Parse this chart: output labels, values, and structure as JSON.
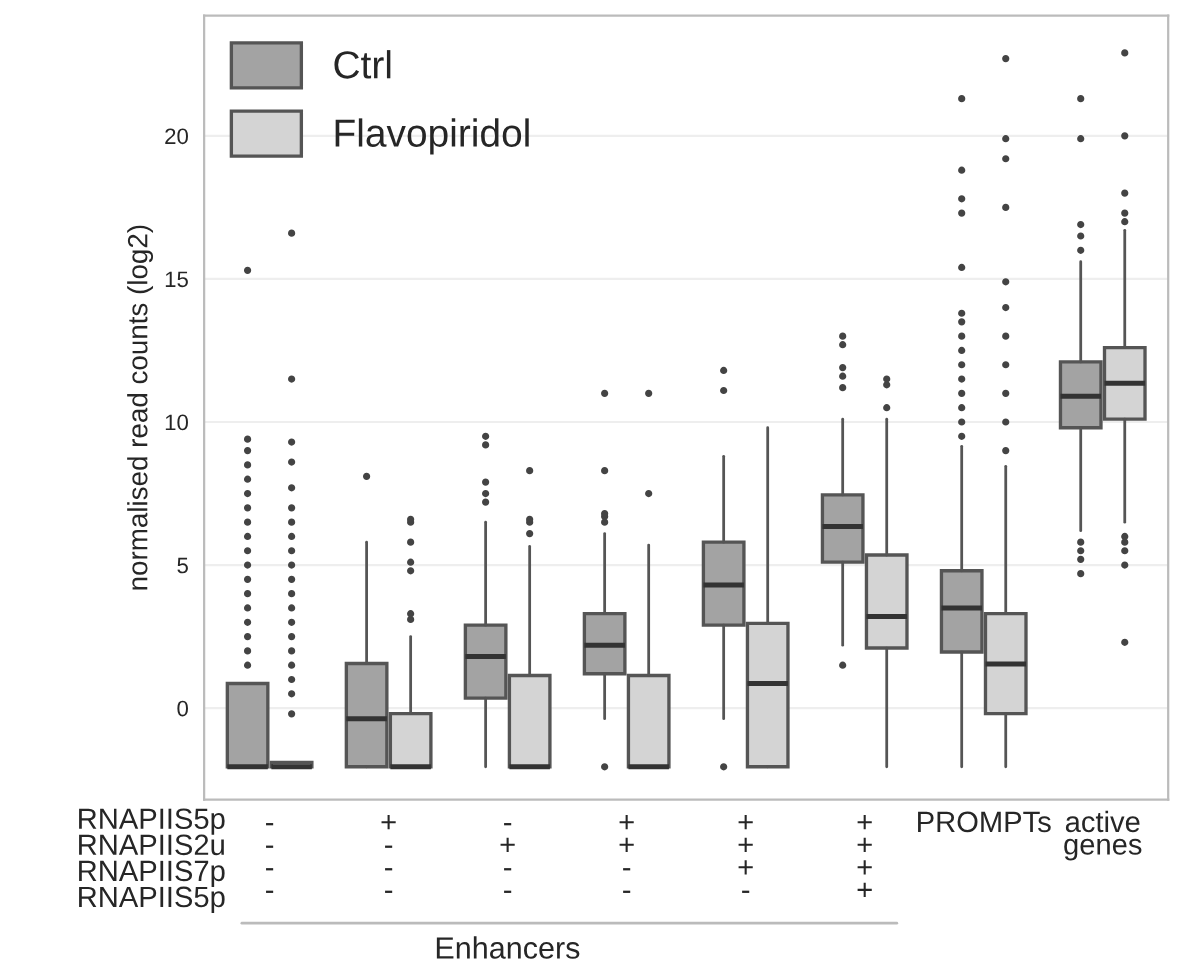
{
  "chart_data": {
    "type": "box",
    "ylabel": "normalised read counts (log2)",
    "categories": [
      "-\n-\n-\n-",
      "+\n-\n-\n-",
      "-\n+\n-\n-",
      "+\n+\n-\n-",
      "+\n+\n+\n-",
      "+\n+\n+\n+",
      "PROMPTs",
      "active\ngenes"
    ],
    "annotations": [
      "RNAPIIS5p",
      "RNAPIIS2u",
      "RNAPIIS7p",
      "RNAPIIS5p",
      "Enhancers"
    ],
    "ylim": [
      -3.2,
      24.2
    ],
    "yticks": [
      0,
      5,
      10,
      15,
      20
    ],
    "grid": "y",
    "legend": "top left",
    "series": [
      {
        "name": "Ctrl",
        "color": "#a3a3a3",
        "boxes": [
          {
            "low": -2.05,
            "q1": -2.05,
            "median": -2.05,
            "q3": 0.86,
            "high": 0.86,
            "outliers": [
              1.5,
              2,
              2.5,
              3,
              3.5,
              4,
              4.5,
              5,
              5.5,
              6,
              6.5,
              7,
              7.5,
              8,
              8.5,
              9,
              9.4,
              15.3
            ]
          },
          {
            "low": -2.05,
            "q1": -2.05,
            "median": -0.37,
            "q3": 1.56,
            "high": 5.8,
            "outliers": [
              8.1
            ]
          },
          {
            "low": -2.05,
            "q1": 0.35,
            "median": 1.8,
            "q3": 2.9,
            "high": 6.5,
            "outliers": [
              7.2,
              7.5,
              7.9,
              9.2,
              9.5
            ]
          },
          {
            "low": -0.37,
            "q1": 1.2,
            "median": 2.2,
            "q3": 3.3,
            "high": 6.1,
            "outliers": [
              -2.05,
              6.5,
              6.7,
              6.8,
              8.3,
              11.0
            ]
          },
          {
            "low": -0.37,
            "q1": 2.9,
            "median": 4.3,
            "q3": 5.8,
            "high": 8.8,
            "outliers": [
              -2.05,
              11.1,
              11.8
            ]
          },
          {
            "low": 2.2,
            "q1": 5.1,
            "median": 6.35,
            "q3": 7.45,
            "high": 10.1,
            "outliers": [
              1.5,
              11.2,
              11.6,
              11.9,
              12.7,
              13.0
            ]
          },
          {
            "low": -2.05,
            "q1": 1.96,
            "median": 3.5,
            "q3": 4.8,
            "high": 9.15,
            "outliers": [
              9.5,
              10,
              10.5,
              11,
              11.5,
              12,
              12.5,
              13,
              13.5,
              13.8,
              15.4,
              17.3,
              17.8,
              18.8,
              21.3
            ]
          },
          {
            "low": 6.2,
            "q1": 9.8,
            "median": 10.9,
            "q3": 12.1,
            "high": 15.6,
            "outliers": [
              4.7,
              5.2,
              5.5,
              5.8,
              16.0,
              16.5,
              16.9,
              19.9,
              21.3
            ]
          }
        ]
      },
      {
        "name": "Flavopiridol",
        "color": "#d4d4d4",
        "boxes": [
          {
            "low": -2.05,
            "q1": -2.05,
            "median": -2.05,
            "q3": -1.9,
            "high": -1.9,
            "outliers": [
              -0.2,
              0.5,
              1,
              1.5,
              2,
              2.5,
              3,
              3.5,
              4,
              4.5,
              5,
              5.5,
              6,
              6.5,
              7,
              7.7,
              8.6,
              9.3,
              11.5,
              16.6
            ]
          },
          {
            "low": -2.05,
            "q1": -2.05,
            "median": -2.05,
            "q3": -0.19,
            "high": 2.5,
            "outliers": [
              3.1,
              3.3,
              4.8,
              5.1,
              5.8,
              6.5,
              6.6
            ]
          },
          {
            "low": -2.05,
            "q1": -2.05,
            "median": -2.05,
            "q3": 1.14,
            "high": 5.65,
            "outliers": [
              6.1,
              6.5,
              6.6,
              8.3
            ]
          },
          {
            "low": -2.05,
            "q1": -2.05,
            "median": -2.05,
            "q3": 1.14,
            "high": 5.7,
            "outliers": [
              7.5,
              11.0
            ]
          },
          {
            "low": -2.05,
            "q1": -2.05,
            "median": 0.86,
            "q3": 2.96,
            "high": 9.8
          },
          {
            "low": -2.05,
            "q1": 2.1,
            "median": 3.2,
            "q3": 5.35,
            "high": 10.1,
            "outliers": [
              10.5,
              11.3,
              11.5
            ]
          },
          {
            "low": -2.05,
            "q1": -0.19,
            "median": 1.54,
            "q3": 3.3,
            "high": 8.45,
            "outliers": [
              9,
              10,
              11,
              12,
              13,
              14,
              14.9,
              17.5,
              19.2,
              19.9,
              22.7
            ]
          },
          {
            "low": 6.5,
            "q1": 10.1,
            "median": 11.35,
            "q3": 12.6,
            "high": 16.7,
            "outliers": [
              2.3,
              5.0,
              5.5,
              5.8,
              6.0,
              17.0,
              17.3,
              18.0,
              20.0,
              22.9
            ]
          }
        ]
      }
    ]
  }
}
